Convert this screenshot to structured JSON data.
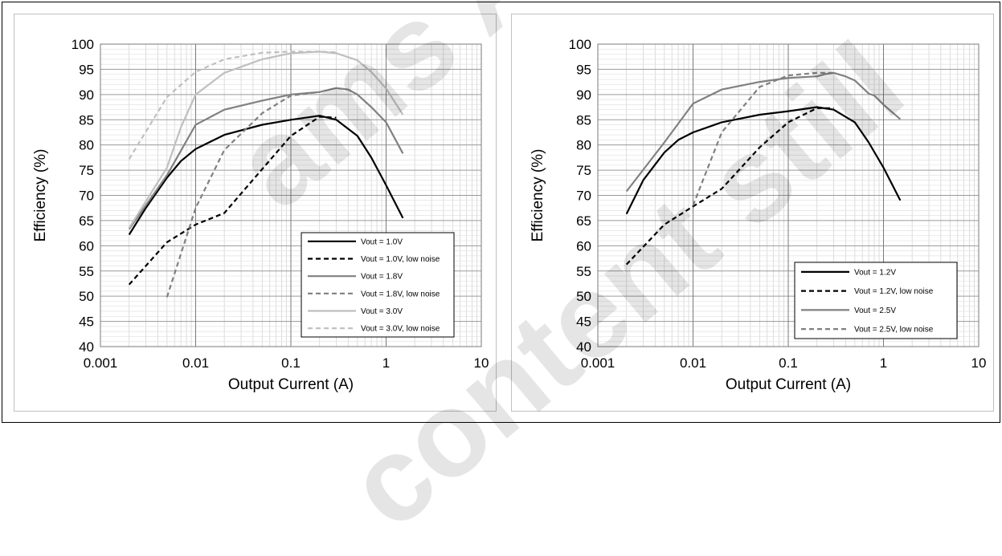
{
  "watermark": {
    "line1": "ams AG",
    "line2": "content still"
  },
  "chart_data": [
    {
      "type": "line",
      "xlabel": "Output Current (A)",
      "ylabel": "Efficiency (%)",
      "xscale": "log",
      "xlim": [
        0.001,
        10
      ],
      "ylim": [
        40,
        100
      ],
      "x_ticks": [
        0.001,
        0.01,
        0.1,
        1,
        10
      ],
      "x_tick_labels": [
        "0.001",
        "0.01",
        "0.1",
        "1",
        "10"
      ],
      "y_ticks": [
        40,
        45,
        50,
        55,
        60,
        65,
        70,
        75,
        80,
        85,
        90,
        95,
        100
      ],
      "grid": true,
      "legend_position": "bottom-right",
      "series": [
        {
          "name": "Vout = 1.0V",
          "color": "#000000",
          "dash": "solid",
          "x": [
            0.002,
            0.003,
            0.005,
            0.007,
            0.01,
            0.02,
            0.05,
            0.1,
            0.2,
            0.3,
            0.5,
            0.7,
            1.0,
            1.5
          ],
          "y": [
            62.2,
            67.5,
            73.5,
            76.8,
            79.2,
            82.0,
            84.0,
            85.0,
            85.8,
            85.0,
            81.8,
            77.5,
            72.0,
            65.5
          ]
        },
        {
          "name": "Vout = 1.0V, low noise",
          "color": "#000000",
          "dash": "dashed",
          "x": [
            0.002,
            0.005,
            0.01,
            0.02,
            0.05,
            0.1,
            0.2,
            0.3
          ],
          "y": [
            52.3,
            60.7,
            64.2,
            66.5,
            75.2,
            81.8,
            85.6,
            85.4
          ]
        },
        {
          "name": "Vout = 1.8V",
          "color": "#808080",
          "dash": "solid",
          "x": [
            0.002,
            0.005,
            0.01,
            0.02,
            0.05,
            0.1,
            0.2,
            0.3,
            0.4,
            0.5,
            0.7,
            1.0,
            1.5
          ],
          "y": [
            63.3,
            74.0,
            84.0,
            87.0,
            88.8,
            90.0,
            90.5,
            91.3,
            91.0,
            90.0,
            87.5,
            84.5,
            78.3
          ]
        },
        {
          "name": "Vout = 1.8V, low noise",
          "color": "#808080",
          "dash": "dashed",
          "x": [
            0.005,
            0.01,
            0.02,
            0.05,
            0.1,
            0.2
          ],
          "y": [
            49.8,
            67.5,
            79.0,
            86.3,
            89.8,
            90.5
          ]
        },
        {
          "name": "Vout = 3.0V",
          "color": "#bfbfbf",
          "dash": "solid",
          "x": [
            0.002,
            0.005,
            0.007,
            0.01,
            0.02,
            0.05,
            0.1,
            0.2,
            0.3,
            0.5,
            0.7,
            1.0,
            1.5
          ],
          "y": [
            63.5,
            75.5,
            83.5,
            90.0,
            94.3,
            97.0,
            98.2,
            98.5,
            98.2,
            96.8,
            94.5,
            91.2,
            86.0
          ]
        },
        {
          "name": "Vout = 3.0V, low noise",
          "color": "#bfbfbf",
          "dash": "dashed",
          "x": [
            0.002,
            0.005,
            0.01,
            0.02,
            0.05,
            0.1,
            0.2,
            0.3
          ],
          "y": [
            77.2,
            89.5,
            94.5,
            97.0,
            98.3,
            98.5,
            98.5,
            98.4
          ]
        }
      ]
    },
    {
      "type": "line",
      "xlabel": "Output Current (A)",
      "ylabel": "Efficiency (%)",
      "xscale": "log",
      "xlim": [
        0.001,
        10
      ],
      "ylim": [
        40,
        100
      ],
      "x_ticks": [
        0.001,
        0.01,
        0.1,
        1,
        10
      ],
      "x_tick_labels": [
        "0.001",
        "0.01",
        "0.1",
        "1",
        "10"
      ],
      "y_ticks": [
        40,
        45,
        50,
        55,
        60,
        65,
        70,
        75,
        80,
        85,
        90,
        95,
        100
      ],
      "grid": true,
      "legend_position": "bottom-right",
      "series": [
        {
          "name": "Vout = 1.2V",
          "color": "#000000",
          "dash": "solid",
          "x": [
            0.002,
            0.003,
            0.005,
            0.007,
            0.01,
            0.02,
            0.05,
            0.1,
            0.2,
            0.3,
            0.5,
            0.7,
            1.0,
            1.5
          ],
          "y": [
            66.3,
            73.0,
            78.5,
            81.0,
            82.5,
            84.5,
            86.0,
            86.7,
            87.5,
            87.0,
            84.5,
            80.5,
            75.5,
            69.0
          ]
        },
        {
          "name": "Vout = 1.2V, low noise",
          "color": "#000000",
          "dash": "dashed",
          "x": [
            0.002,
            0.005,
            0.01,
            0.02,
            0.05,
            0.1,
            0.2,
            0.3
          ],
          "y": [
            56.3,
            64.2,
            67.8,
            71.3,
            79.5,
            84.5,
            87.3,
            87.3
          ]
        },
        {
          "name": "Vout = 2.5V",
          "color": "#808080",
          "dash": "solid",
          "x": [
            0.002,
            0.005,
            0.01,
            0.02,
            0.05,
            0.1,
            0.2,
            0.25,
            0.3,
            0.4,
            0.5,
            0.7,
            0.8,
            1.0,
            1.5
          ],
          "y": [
            70.8,
            80.5,
            88.2,
            91.0,
            92.5,
            93.3,
            93.6,
            94.1,
            94.3,
            93.6,
            92.8,
            90.2,
            89.8,
            88.0,
            85.1
          ]
        },
        {
          "name": "Vout = 2.5V, low noise",
          "color": "#808080",
          "dash": "dashed",
          "x": [
            0.01,
            0.02,
            0.05,
            0.1,
            0.2,
            0.3
          ],
          "y": [
            68.0,
            82.5,
            91.5,
            93.8,
            94.3,
            94.3
          ]
        }
      ]
    }
  ]
}
